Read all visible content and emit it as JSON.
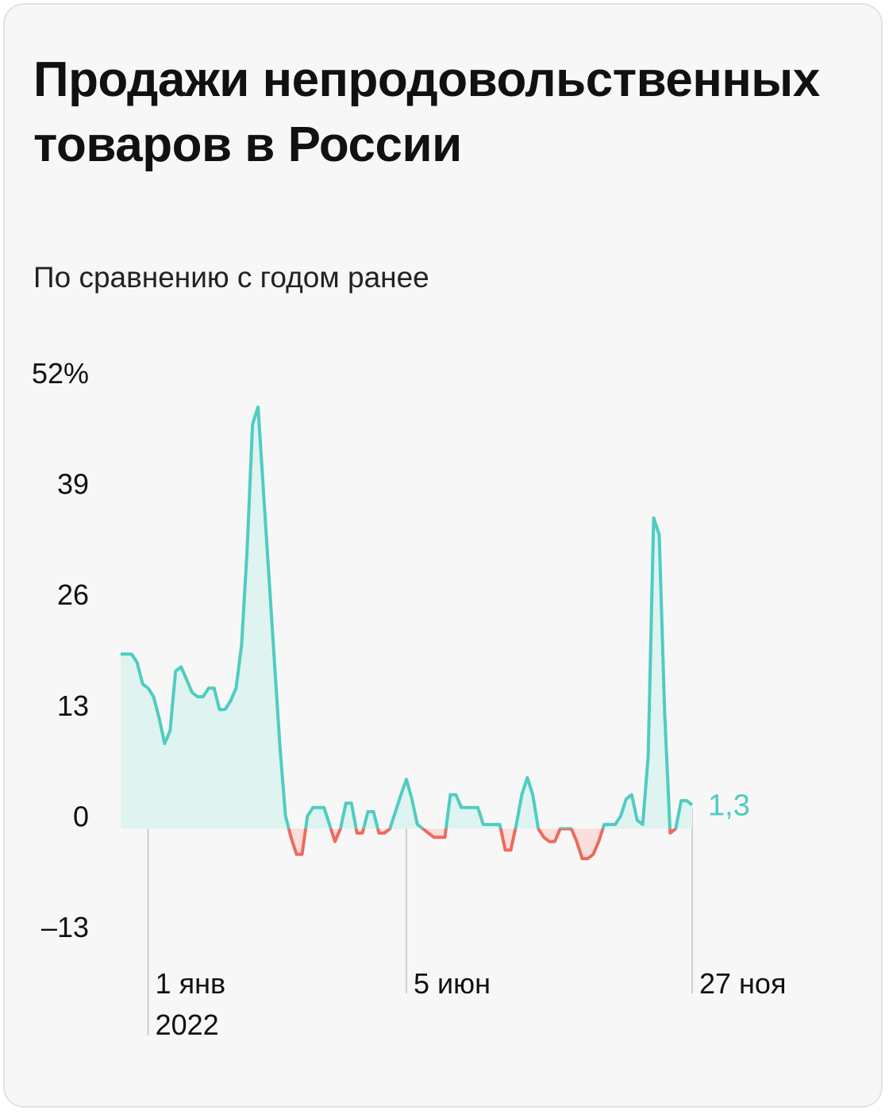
{
  "title": "Продажи непродовольственных товаров в России",
  "subtitle": "По сравнению с годом ранее",
  "colors": {
    "background": "#f7f7f7",
    "positive_line": "#4ecdc0",
    "positive_fill": "#dff3f0",
    "negative_line": "#ee6a5c",
    "negative_fill": "#f9dedb",
    "text": "#111111"
  },
  "chart_data": {
    "type": "area",
    "title": "Продажи непродовольственных товаров в России",
    "subtitle": "По сравнению с годом ранее",
    "ylim": [
      -13,
      52
    ],
    "y_ticks": [
      52,
      39,
      26,
      13,
      0,
      -13
    ],
    "y_tick_labels": [
      "52%",
      "39",
      "26",
      "13",
      "0",
      "–13"
    ],
    "x_ticks": [
      {
        "index": 5,
        "label": "1 янв",
        "sublabel": "2022"
      },
      {
        "index": 52,
        "label": "5 июн",
        "sublabel": ""
      },
      {
        "index": 104,
        "label": "27 ноя",
        "sublabel": ""
      }
    ],
    "last_value_label": "1,3",
    "series": [
      {
        "values": [
          19.0,
          19.0,
          19.0,
          18.0,
          15.5,
          15.0,
          14.0,
          11.5,
          8.5,
          10.0,
          17.0,
          17.5,
          16.0,
          14.5,
          14.0,
          14.0,
          15.0,
          15.0,
          12.5,
          12.5,
          13.5,
          15.0,
          20.0,
          31.0,
          46.0,
          48.0,
          38.0,
          28.0,
          18.0,
          8.0,
          0.0,
          -2.5,
          -4.5,
          -4.5,
          0.0,
          1.0,
          1.0,
          1.0,
          -1.0,
          -3.0,
          -1.5,
          1.5,
          1.5,
          -2.0,
          -2.0,
          0.5,
          0.5,
          -2.0,
          -2.0,
          -1.5,
          0.5,
          2.5,
          4.3,
          2.0,
          -1.0,
          -1.5,
          -2.0,
          -2.5,
          -2.5,
          -2.5,
          2.5,
          2.5,
          1.0,
          1.0,
          1.0,
          1.0,
          -1.0,
          -1.0,
          -1.0,
          -1.0,
          -4.0,
          -4.0,
          -1.0,
          2.5,
          4.5,
          2.5,
          -1.5,
          -2.5,
          -3.0,
          -3.0,
          -1.5,
          -1.5,
          -1.5,
          -3.0,
          -5.0,
          -5.0,
          -4.5,
          -3.0,
          -1.0,
          -1.0,
          -1.0,
          0.0,
          2.0,
          2.5,
          -0.5,
          -1.0,
          7.0,
          35.0,
          33.0,
          12.0,
          -2.0,
          -1.5,
          1.8,
          1.8,
          1.3
        ]
      }
    ]
  }
}
